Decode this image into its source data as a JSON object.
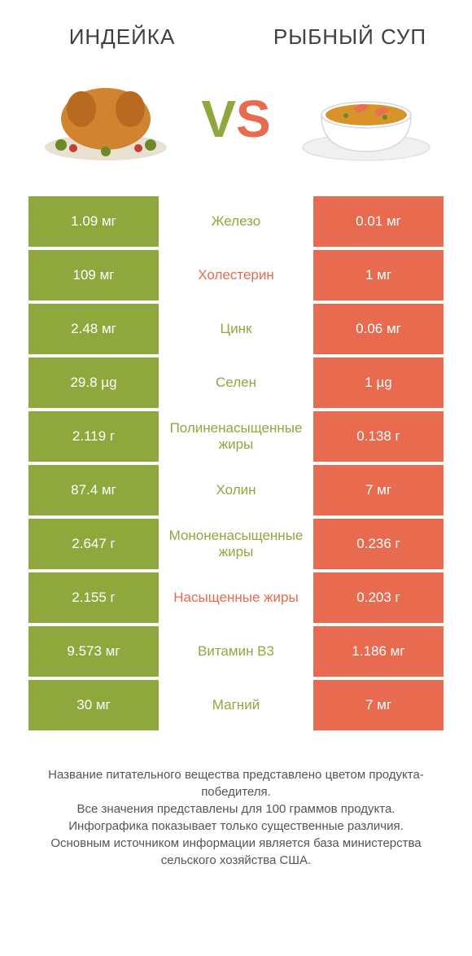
{
  "titles": {
    "left": "ИНДЕЙКА",
    "right": "РЫБНЫЙ СУП"
  },
  "vs": {
    "v": "V",
    "s": "S"
  },
  "colors": {
    "left": "#8fa83e",
    "right": "#e86a4f",
    "text": "#404040"
  },
  "rows": [
    {
      "left": "1.09 мг",
      "mid": "Железо",
      "right": "0.01 мг",
      "winner": "green"
    },
    {
      "left": "109 мг",
      "mid": "Холестерин",
      "right": "1 мг",
      "winner": "red"
    },
    {
      "left": "2.48 мг",
      "mid": "Цинк",
      "right": "0.06 мг",
      "winner": "green"
    },
    {
      "left": "29.8 µg",
      "mid": "Селен",
      "right": "1 µg",
      "winner": "green"
    },
    {
      "left": "2.119 г",
      "mid": "Полиненасыщенные жиры",
      "right": "0.138 г",
      "winner": "green"
    },
    {
      "left": "87.4 мг",
      "mid": "Холин",
      "right": "7 мг",
      "winner": "green"
    },
    {
      "left": "2.647 г",
      "mid": "Мононенасыщенные жиры",
      "right": "0.236 г",
      "winner": "green"
    },
    {
      "left": "2.155 г",
      "mid": "Насыщенные жиры",
      "right": "0.203 г",
      "winner": "red"
    },
    {
      "left": "9.573 мг",
      "mid": "Витамин B3",
      "right": "1.186 мг",
      "winner": "green"
    },
    {
      "left": "30 мг",
      "mid": "Магний",
      "right": "7 мг",
      "winner": "green"
    }
  ],
  "footer": {
    "l1": "Название питательного вещества представлено цветом продукта-победителя.",
    "l2": "Все значения представлены для 100 граммов продукта.",
    "l3": "Инфографика показывает только существенные различия.",
    "l4": "Основным источником информации является база министерства сельского хозяйства США."
  }
}
